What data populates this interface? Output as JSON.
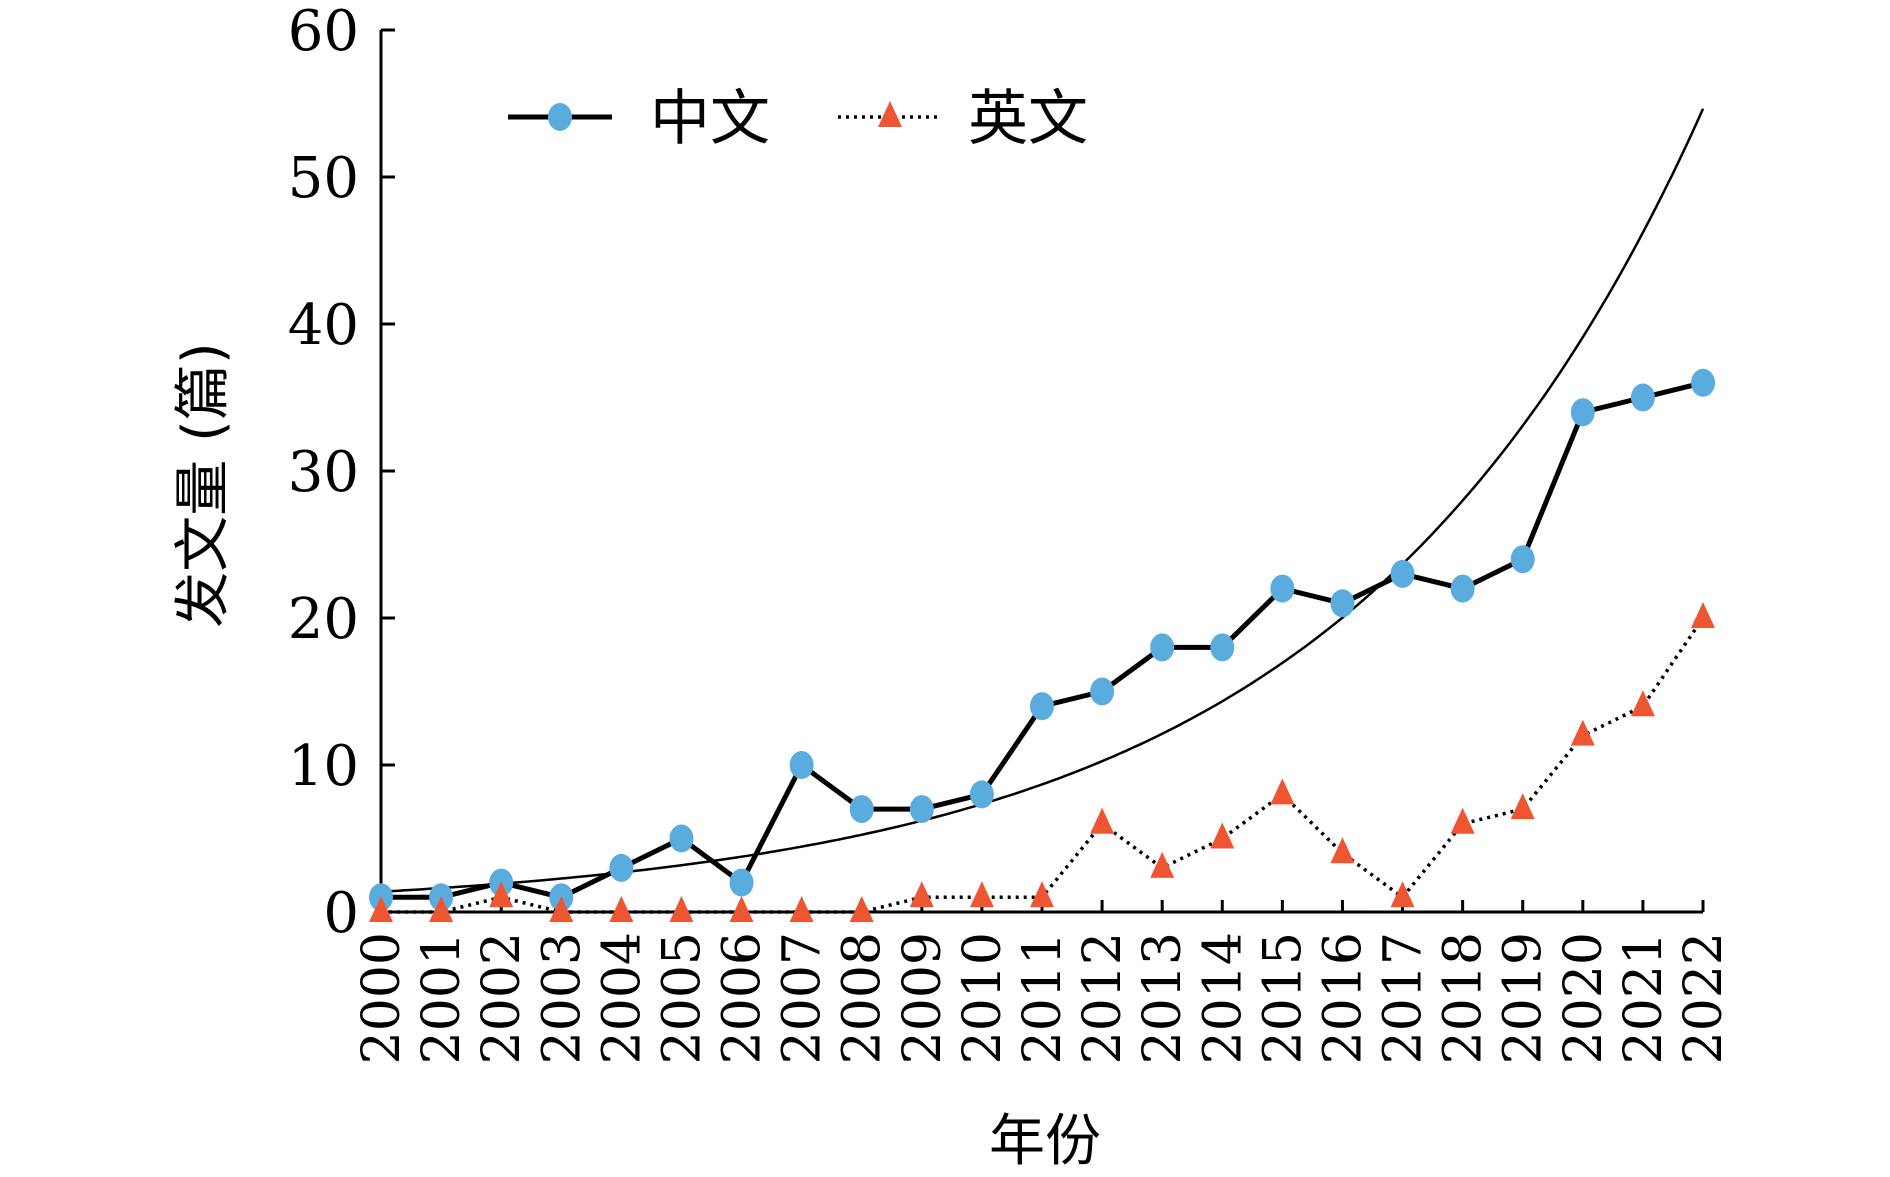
{
  "chart_data": {
    "type": "line",
    "title": "",
    "xlabel": "年份",
    "ylabel": "发文量 (篇)",
    "x": [
      "2000",
      "2001",
      "2002",
      "2003",
      "2004",
      "2005",
      "2006",
      "2007",
      "2008",
      "2009",
      "2010",
      "2011",
      "2012",
      "2013",
      "2014",
      "2015",
      "2016",
      "2017",
      "2018",
      "2019",
      "2020",
      "2021",
      "2022"
    ],
    "ylim": [
      0,
      60
    ],
    "yticks": [
      "0",
      "10",
      "20",
      "30",
      "40",
      "50",
      "60"
    ],
    "grid": false,
    "legend_position": "top-left",
    "series": [
      {
        "name": "中文",
        "values": [
          1,
          1,
          2,
          1,
          3,
          5,
          2,
          10,
          7,
          7,
          8,
          14,
          15,
          18,
          18,
          22,
          21,
          23,
          22,
          24,
          34,
          35,
          36
        ],
        "color": "#000000",
        "marker": "circle",
        "marker_color": "#5aacde",
        "line_style": "solid"
      },
      {
        "name": "英文",
        "values": [
          0,
          0,
          1,
          0,
          0,
          0,
          0,
          0,
          0,
          1,
          1,
          1,
          6,
          3,
          5,
          8,
          4,
          1,
          6,
          7,
          12,
          14,
          20
        ],
        "color": "#000000",
        "marker": "triangle",
        "marker_color": "#ee5533",
        "line_style": "dotted"
      }
    ],
    "trendline": {
      "type": "exponential",
      "series": "中文",
      "color": "#000000"
    }
  }
}
